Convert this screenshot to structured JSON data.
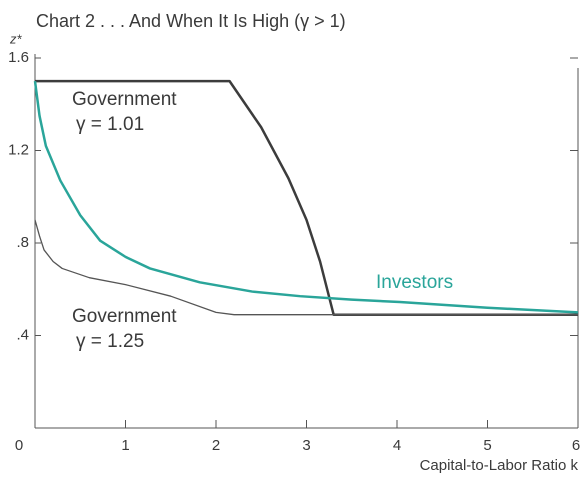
{
  "chart_data": {
    "type": "line",
    "title": "Chart 2  . . . And When It Is High (γ > 1)",
    "ylabel": "z*",
    "xlabel": "Capital-to-Labor Ratio k",
    "xlim": [
      0,
      6
    ],
    "ylim": [
      0,
      1.6
    ],
    "xticks": [
      0,
      1,
      2,
      3,
      4,
      5,
      6
    ],
    "yticks": [
      {
        "value": 0.4,
        "label": ".4"
      },
      {
        "value": 0.8,
        "label": ".8"
      },
      {
        "value": 1.2,
        "label": "1.2"
      },
      {
        "value": 1.6,
        "label": "1.6"
      }
    ],
    "series": [
      {
        "label_lines": [
          "Government",
          "γ = 1.01"
        ],
        "color": "#3c3c3c",
        "x": [
          0,
          2.15,
          2.5,
          2.8,
          3.0,
          3.15,
          3.3,
          6
        ],
        "values": [
          1.5,
          1.5,
          1.3,
          1.08,
          0.9,
          0.72,
          0.49,
          0.49
        ]
      },
      {
        "label_lines": [
          "Investors"
        ],
        "color": "#2aa59a",
        "x": [
          0,
          0.05,
          0.12,
          0.28,
          0.5,
          0.72,
          1.0,
          1.27,
          1.82,
          2.4,
          2.93,
          3.5,
          4.03,
          5.0,
          6
        ],
        "values": [
          1.5,
          1.35,
          1.22,
          1.07,
          0.92,
          0.81,
          0.74,
          0.69,
          0.63,
          0.59,
          0.57,
          0.555,
          0.545,
          0.52,
          0.5
        ]
      },
      {
        "label_lines": [
          "Government",
          "γ = 1.25"
        ],
        "color": "#555555",
        "x": [
          0,
          0.05,
          0.1,
          0.2,
          0.3,
          0.6,
          1.0,
          1.5,
          2.0,
          2.2,
          6
        ],
        "values": [
          0.9,
          0.83,
          0.77,
          0.72,
          0.69,
          0.65,
          0.62,
          0.57,
          0.5,
          0.49,
          0.49
        ]
      }
    ]
  }
}
